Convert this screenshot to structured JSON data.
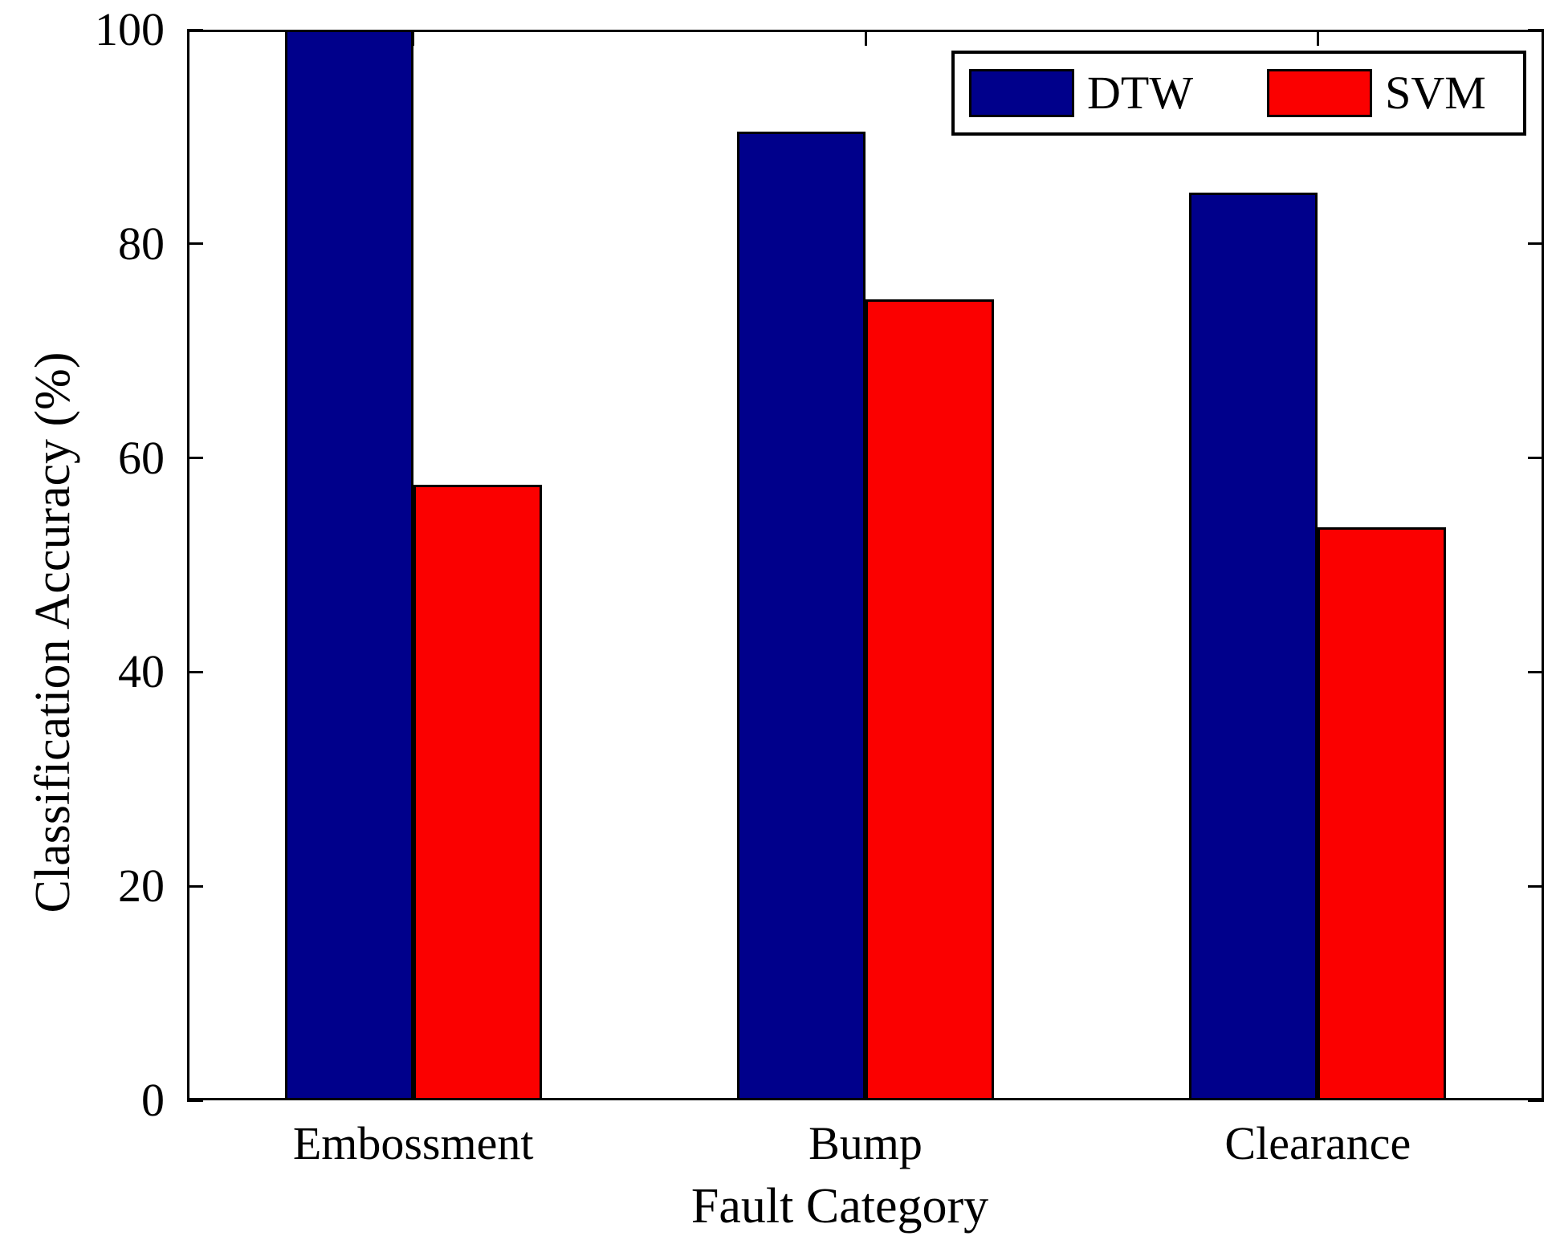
{
  "chart_data": {
    "type": "bar",
    "title": "",
    "categories": [
      "Embossment",
      "Bump",
      "Clearance"
    ],
    "series": [
      {
        "name": "DTW",
        "color": "#00008B",
        "values": [
          100,
          90.5,
          84.8
        ]
      },
      {
        "name": "SVM",
        "color": "#FB0000",
        "values": [
          57.5,
          74.8,
          53.5
        ]
      }
    ],
    "xlabel": "Fault Category",
    "ylabel": "Classification Accuracy (%)",
    "ylim": [
      0,
      100
    ],
    "yticks": [
      0,
      20,
      40,
      60,
      80,
      100
    ],
    "grid": false,
    "legend_position": "top-right-inside",
    "bar_edge_color": "#000000",
    "axis_color": "#000000"
  }
}
